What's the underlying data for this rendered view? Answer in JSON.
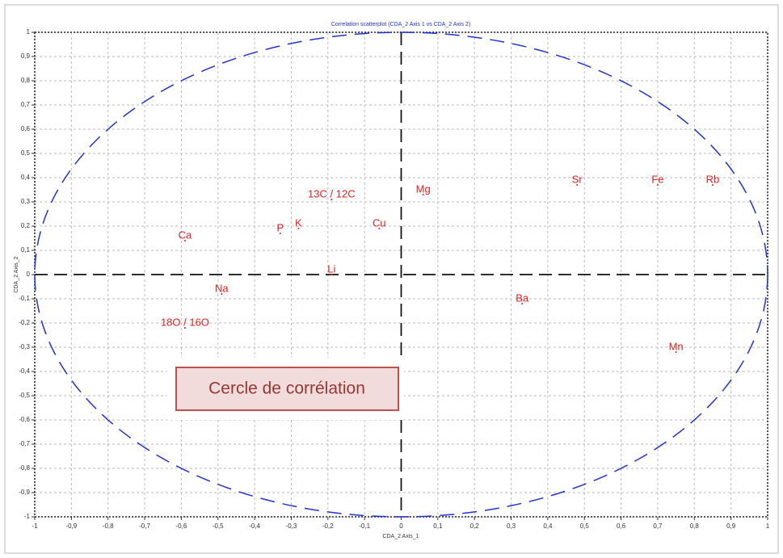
{
  "chart_data": {
    "type": "scatter",
    "title": "Correlation scatterplot (CDA_2 Axis 1 vs CDA_2 Axis 2)",
    "xlabel": "CDA_2 Axis_1",
    "ylabel": "CDA_2 Axis_2",
    "annotation": "Cercle de corrélation",
    "labels": [
      "Ca",
      "P",
      "K",
      "13C / 12C",
      "Cu",
      "Mg",
      "Li",
      "Na",
      "18O / 16O",
      "Ba",
      "Sr",
      "Fe",
      "Rb",
      "Mn"
    ],
    "x": [
      -0.59,
      -0.33,
      -0.28,
      -0.19,
      -0.06,
      0.06,
      -0.19,
      -0.49,
      -0.59,
      0.33,
      0.48,
      0.7,
      0.85,
      0.75
    ],
    "values": [
      0.14,
      0.17,
      0.19,
      0.31,
      0.19,
      0.33,
      0.0,
      -0.08,
      -0.22,
      -0.12,
      0.37,
      0.37,
      0.37,
      -0.32
    ],
    "color": "#e02020",
    "circle_color": "#2233cc",
    "xlim": [
      -1,
      1
    ],
    "ylim": [
      -1,
      1
    ],
    "xticks": [
      -1,
      {
        "value": -0.9,
        "label": "-0,9"
      },
      {
        "value": -0.8,
        "label": "-0,8"
      },
      {
        "value": -0.7,
        "label": "-0,7"
      },
      {
        "value": -0.6,
        "label": "-0,6"
      },
      {
        "value": -0.5,
        "label": "-0,5"
      },
      {
        "value": -0.4,
        "label": "-0,4"
      },
      {
        "value": -0.3,
        "label": "-0,3"
      },
      {
        "value": -0.2,
        "label": "-0,2"
      },
      {
        "value": -0.1,
        "label": "-0,1"
      },
      0,
      {
        "value": 0.1,
        "label": "0,1"
      },
      {
        "value": 0.2,
        "label": "0,2"
      },
      {
        "value": 0.3,
        "label": "0,3"
      },
      {
        "value": 0.4,
        "label": "0,4"
      },
      {
        "value": 0.5,
        "label": "0,5"
      },
      {
        "value": 0.6,
        "label": "0,6"
      },
      {
        "value": 0.7,
        "label": "0,7"
      },
      {
        "value": 0.8,
        "label": "0,8"
      },
      {
        "value": 0.9,
        "label": "0,9"
      },
      1
    ],
    "yticks": [
      -1,
      {
        "value": -0.9,
        "label": "-0,9"
      },
      {
        "value": -0.8,
        "label": "-0,8"
      },
      {
        "value": -0.7,
        "label": "-0,7"
      },
      {
        "value": -0.6,
        "label": "-0,6"
      },
      {
        "value": -0.5,
        "label": "-0,5"
      },
      {
        "value": -0.4,
        "label": "-0,4"
      },
      {
        "value": -0.3,
        "label": "-0,3"
      },
      {
        "value": -0.2,
        "label": "-0,2"
      },
      {
        "value": -0.1,
        "label": "-0,1"
      },
      0,
      {
        "value": 0.1,
        "label": "0,1"
      },
      {
        "value": 0.2,
        "label": "0,2"
      },
      {
        "value": 0.3,
        "label": "0,3"
      },
      {
        "value": 0.4,
        "label": "0,4"
      },
      {
        "value": 0.5,
        "label": "0,5"
      },
      {
        "value": 0.6,
        "label": "0,6"
      },
      {
        "value": 0.7,
        "label": "0,7"
      },
      {
        "value": 0.8,
        "label": "0,8"
      },
      {
        "value": 0.9,
        "label": "0,9"
      },
      1
    ],
    "grid": true
  }
}
